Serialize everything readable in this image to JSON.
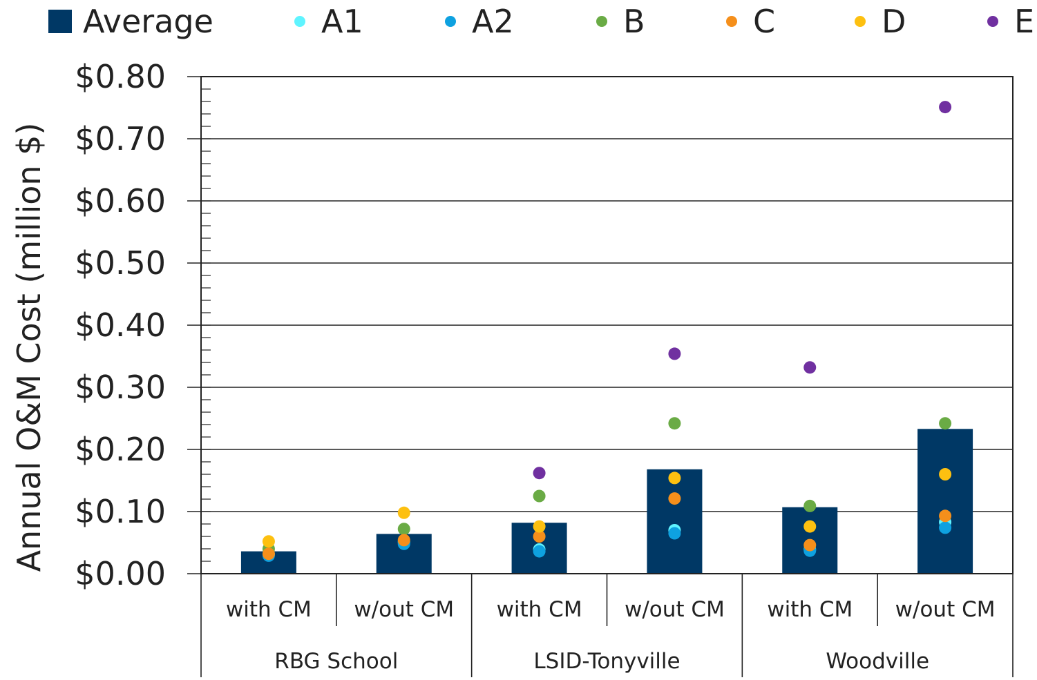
{
  "chart_data": {
    "type": "bar",
    "ylabel": "Annual O&M Cost (million $)",
    "ylim": [
      0,
      0.8
    ],
    "yticks": [
      0,
      0.1,
      0.2,
      0.3,
      0.4,
      0.5,
      0.6,
      0.7,
      0.8
    ],
    "ytick_labels": [
      "$0.00",
      "$0.10",
      "$0.20",
      "$0.30",
      "$0.40",
      "$0.50",
      "$0.60",
      "$0.70",
      "$0.80"
    ],
    "groups": [
      {
        "label": "RBG School",
        "categories": [
          "with CM",
          "w/out CM"
        ]
      },
      {
        "label": "LSID-Tonyville",
        "categories": [
          "with CM",
          "w/out CM"
        ]
      },
      {
        "label": "Woodville",
        "categories": [
          "with CM",
          "w/out CM"
        ]
      }
    ],
    "categories": [
      "with CM",
      "w/out CM",
      "with CM",
      "w/out CM",
      "with CM",
      "w/out CM"
    ],
    "grid": true,
    "legend_position": "top",
    "series": [
      {
        "name": "Average",
        "kind": "bar",
        "color": "#003865",
        "values": [
          0.036,
          0.064,
          0.082,
          0.168,
          0.107,
          0.233
        ]
      },
      {
        "name": "A1",
        "kind": "scatter",
        "color": "#5ff4ff",
        "values": [
          0.031,
          0.051,
          0.039,
          0.07,
          0.039,
          0.083
        ]
      },
      {
        "name": "A2",
        "kind": "scatter",
        "color": "#0ea1e0",
        "values": [
          0.029,
          0.048,
          0.036,
          0.065,
          0.037,
          0.074
        ]
      },
      {
        "name": "B",
        "kind": "scatter",
        "color": "#6aab45",
        "values": [
          0.04,
          0.072,
          0.125,
          0.242,
          0.109,
          0.242
        ]
      },
      {
        "name": "C",
        "kind": "scatter",
        "color": "#f58f1b",
        "values": [
          0.032,
          0.054,
          0.06,
          0.121,
          0.046,
          0.093
        ]
      },
      {
        "name": "D",
        "kind": "scatter",
        "color": "#fdc010",
        "values": [
          0.052,
          0.098,
          0.076,
          0.154,
          0.076,
          0.16
        ]
      },
      {
        "name": "E",
        "kind": "scatter",
        "color": "#7030a0",
        "values": [
          null,
          null,
          0.162,
          0.354,
          0.332,
          0.751
        ]
      }
    ]
  }
}
